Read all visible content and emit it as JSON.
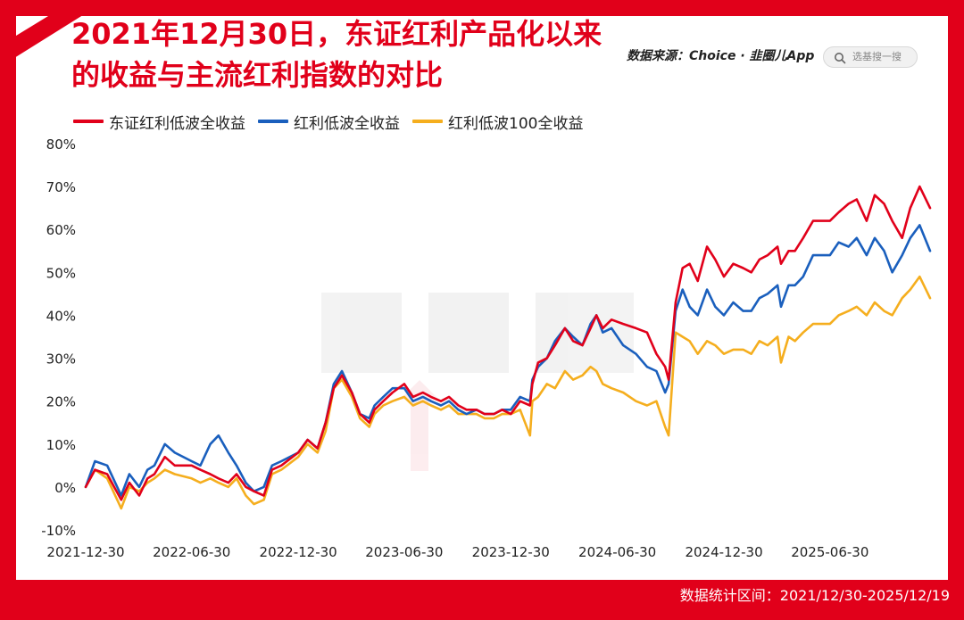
{
  "title_line1": "2021年12月30日，东证红利产品化以来",
  "title_line2": "的收益与主流红利指数的对比",
  "source": "数据来源：Choice · 韭圈儿App",
  "search_placeholder": "选基搜一搜",
  "footer": "数据统计区间：2021/12/30-2025/12/19",
  "colors": {
    "brand_red": "#e1001a",
    "series_red": "#e1001a",
    "series_blue": "#1a5fbd",
    "series_orange": "#f5ae1e"
  },
  "chart_data": {
    "type": "line",
    "x_ticks": [
      "2021-12-30",
      "2022-06-30",
      "2022-12-30",
      "2023-06-30",
      "2023-12-30",
      "2024-06-30",
      "2024-12-30",
      "2025-06-30"
    ],
    "y_ticks": [
      "-10%",
      "0%",
      "10%",
      "20%",
      "30%",
      "40%",
      "50%",
      "60%",
      "70%",
      "80%"
    ],
    "ylim": [
      -10,
      80
    ],
    "xlim": [
      "2021-12-30",
      "2025-12-19"
    ],
    "series": [
      {
        "name": "东证红利低波全收益",
        "color": "#e1001a",
        "x": [
          "2021-12-30",
          "2022-01-15",
          "2022-02-05",
          "2022-03-01",
          "2022-03-15",
          "2022-04-01",
          "2022-04-15",
          "2022-04-27",
          "2022-05-15",
          "2022-06-01",
          "2022-06-30",
          "2022-07-15",
          "2022-08-01",
          "2022-08-15",
          "2022-09-01",
          "2022-09-15",
          "2022-10-01",
          "2022-10-15",
          "2022-11-01",
          "2022-11-15",
          "2022-12-01",
          "2022-12-30",
          "2023-01-15",
          "2023-02-01",
          "2023-02-15",
          "2023-03-01",
          "2023-03-15",
          "2023-04-01",
          "2023-04-15",
          "2023-05-01",
          "2023-05-10",
          "2023-05-25",
          "2023-06-10",
          "2023-06-30",
          "2023-07-15",
          "2023-08-01",
          "2023-08-15",
          "2023-09-01",
          "2023-09-15",
          "2023-10-01",
          "2023-10-15",
          "2023-11-01",
          "2023-11-15",
          "2023-12-01",
          "2023-12-15",
          "2023-12-30",
          "2024-01-15",
          "2024-02-01",
          "2024-02-05",
          "2024-02-15",
          "2024-03-01",
          "2024-03-15",
          "2024-04-01",
          "2024-04-15",
          "2024-05-01",
          "2024-05-15",
          "2024-05-25",
          "2024-06-05",
          "2024-06-20",
          "2024-07-10",
          "2024-08-01",
          "2024-08-20",
          "2024-09-05",
          "2024-09-20",
          "2024-09-26",
          "2024-10-08",
          "2024-10-20",
          "2024-11-01",
          "2024-11-15",
          "2024-12-01",
          "2024-12-15",
          "2024-12-30",
          "2025-01-15",
          "2025-02-01",
          "2025-02-15",
          "2025-03-01",
          "2025-03-15",
          "2025-04-01",
          "2025-04-07",
          "2025-04-20",
          "2025-05-01",
          "2025-05-15",
          "2025-06-01",
          "2025-06-30",
          "2025-07-15",
          "2025-08-01",
          "2025-08-15",
          "2025-09-01",
          "2025-09-15",
          "2025-10-01",
          "2025-10-15",
          "2025-11-01",
          "2025-11-15",
          "2025-12-01",
          "2025-12-19"
        ],
        "y": [
          0,
          4,
          3,
          -3,
          1,
          -2,
          2,
          3,
          7,
          5,
          5,
          4,
          3,
          2,
          1,
          3,
          0,
          -1,
          -2,
          4,
          5,
          8,
          11,
          9,
          15,
          23,
          26,
          22,
          17,
          15,
          18,
          20,
          22,
          24,
          21,
          22,
          21,
          20,
          21,
          19,
          18,
          18,
          17,
          17,
          18,
          17,
          20,
          19,
          24,
          29,
          30,
          33,
          37,
          34,
          33,
          37,
          40,
          37,
          39,
          38,
          37,
          36,
          31,
          28,
          25,
          43,
          51,
          52,
          48,
          56,
          53,
          49,
          52,
          51,
          50,
          53,
          54,
          56,
          52,
          55,
          55,
          58,
          62,
          62,
          64,
          66,
          67,
          62,
          68,
          66,
          62,
          58,
          65,
          70,
          65
        ]
      },
      {
        "name": "红利低波全收益",
        "color": "#1a5fbd",
        "x": [
          "2021-12-30",
          "2022-01-15",
          "2022-02-05",
          "2022-03-01",
          "2022-03-15",
          "2022-04-01",
          "2022-04-15",
          "2022-04-27",
          "2022-05-15",
          "2022-06-01",
          "2022-06-30",
          "2022-07-15",
          "2022-08-01",
          "2022-08-15",
          "2022-09-01",
          "2022-09-15",
          "2022-10-01",
          "2022-10-15",
          "2022-11-01",
          "2022-11-15",
          "2022-12-01",
          "2022-12-30",
          "2023-01-15",
          "2023-02-01",
          "2023-02-15",
          "2023-03-01",
          "2023-03-15",
          "2023-04-01",
          "2023-04-15",
          "2023-05-01",
          "2023-05-10",
          "2023-05-25",
          "2023-06-10",
          "2023-06-30",
          "2023-07-15",
          "2023-08-01",
          "2023-08-15",
          "2023-09-01",
          "2023-09-15",
          "2023-10-01",
          "2023-10-15",
          "2023-11-01",
          "2023-11-15",
          "2023-12-01",
          "2023-12-15",
          "2023-12-30",
          "2024-01-15",
          "2024-02-01",
          "2024-02-05",
          "2024-02-15",
          "2024-03-01",
          "2024-03-15",
          "2024-04-01",
          "2024-04-15",
          "2024-05-01",
          "2024-05-15",
          "2024-05-25",
          "2024-06-05",
          "2024-06-20",
          "2024-07-10",
          "2024-08-01",
          "2024-08-20",
          "2024-09-05",
          "2024-09-20",
          "2024-09-26",
          "2024-10-08",
          "2024-10-20",
          "2024-11-01",
          "2024-11-15",
          "2024-12-01",
          "2024-12-15",
          "2024-12-30",
          "2025-01-15",
          "2025-02-01",
          "2025-02-15",
          "2025-03-01",
          "2025-03-15",
          "2025-04-01",
          "2025-04-07",
          "2025-04-20",
          "2025-05-01",
          "2025-05-15",
          "2025-06-01",
          "2025-06-30",
          "2025-07-15",
          "2025-08-01",
          "2025-08-15",
          "2025-09-01",
          "2025-09-15",
          "2025-10-01",
          "2025-10-15",
          "2025-11-01",
          "2025-11-15",
          "2025-12-01",
          "2025-12-19"
        ],
        "y": [
          0,
          6,
          5,
          -2,
          3,
          0,
          4,
          5,
          10,
          8,
          6,
          5,
          10,
          12,
          8,
          5,
          1,
          -1,
          0,
          5,
          6,
          8,
          11,
          9,
          15,
          24,
          27,
          22,
          17,
          16,
          19,
          21,
          23,
          23,
          20,
          21,
          20,
          19,
          20,
          18,
          17,
          18,
          17,
          17,
          18,
          18,
          21,
          20,
          25,
          28,
          30,
          34,
          37,
          35,
          33,
          38,
          40,
          36,
          37,
          33,
          31,
          28,
          27,
          22,
          24,
          41,
          46,
          42,
          40,
          46,
          42,
          40,
          43,
          41,
          41,
          44,
          45,
          47,
          42,
          47,
          47,
          49,
          54,
          54,
          57,
          56,
          58,
          54,
          58,
          55,
          50,
          54,
          58,
          61,
          55
        ]
      },
      {
        "name": "红利低波100全收益",
        "color": "#f5ae1e",
        "x": [
          "2021-12-30",
          "2022-01-15",
          "2022-02-05",
          "2022-03-01",
          "2022-03-15",
          "2022-04-01",
          "2022-04-15",
          "2022-04-27",
          "2022-05-15",
          "2022-06-01",
          "2022-06-30",
          "2022-07-15",
          "2022-08-01",
          "2022-08-15",
          "2022-09-01",
          "2022-09-15",
          "2022-10-01",
          "2022-10-15",
          "2022-11-01",
          "2022-11-15",
          "2022-12-01",
          "2022-12-30",
          "2023-01-15",
          "2023-02-01",
          "2023-02-15",
          "2023-03-01",
          "2023-03-15",
          "2023-04-01",
          "2023-04-15",
          "2023-05-01",
          "2023-05-10",
          "2023-05-25",
          "2023-06-10",
          "2023-06-30",
          "2023-07-15",
          "2023-08-01",
          "2023-08-15",
          "2023-09-01",
          "2023-09-15",
          "2023-10-01",
          "2023-10-15",
          "2023-11-01",
          "2023-11-15",
          "2023-12-01",
          "2023-12-15",
          "2023-12-30",
          "2024-01-15",
          "2024-02-01",
          "2024-02-05",
          "2024-02-15",
          "2024-03-01",
          "2024-03-15",
          "2024-04-01",
          "2024-04-15",
          "2024-05-01",
          "2024-05-15",
          "2024-05-25",
          "2024-06-05",
          "2024-06-20",
          "2024-07-10",
          "2024-08-01",
          "2024-08-20",
          "2024-09-05",
          "2024-09-20",
          "2024-09-26",
          "2024-10-08",
          "2024-10-20",
          "2024-11-01",
          "2024-11-15",
          "2024-12-01",
          "2024-12-15",
          "2024-12-30",
          "2025-01-15",
          "2025-02-01",
          "2025-02-15",
          "2025-03-01",
          "2025-03-15",
          "2025-04-01",
          "2025-04-07",
          "2025-04-20",
          "2025-05-01",
          "2025-05-15",
          "2025-06-01",
          "2025-06-30",
          "2025-07-15",
          "2025-08-01",
          "2025-08-15",
          "2025-09-01",
          "2025-09-15",
          "2025-10-01",
          "2025-10-15",
          "2025-11-01",
          "2025-11-15",
          "2025-12-01",
          "2025-12-19"
        ],
        "y": [
          0,
          4,
          2,
          -5,
          0,
          -1,
          1,
          2,
          4,
          3,
          2,
          1,
          2,
          1,
          0,
          2,
          -2,
          -4,
          -3,
          3,
          4,
          7,
          10,
          8,
          13,
          23,
          25,
          21,
          16,
          14,
          17,
          19,
          20,
          21,
          19,
          20,
          19,
          18,
          19,
          17,
          17,
          17,
          16,
          16,
          17,
          17,
          18,
          12,
          20,
          21,
          24,
          23,
          27,
          25,
          26,
          28,
          27,
          24,
          23,
          22,
          20,
          19,
          20,
          14,
          12,
          36,
          35,
          34,
          31,
          34,
          33,
          31,
          32,
          32,
          31,
          34,
          33,
          35,
          29,
          35,
          34,
          36,
          38,
          38,
          40,
          41,
          42,
          40,
          43,
          41,
          40,
          44,
          46,
          49,
          44
        ]
      }
    ]
  }
}
